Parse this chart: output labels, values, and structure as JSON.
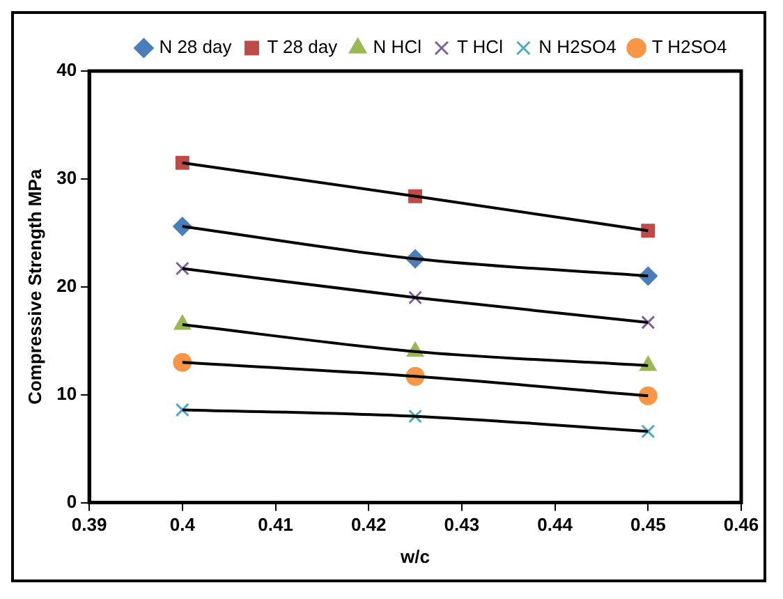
{
  "chart_data": {
    "type": "scatter",
    "xlabel": "w/c",
    "ylabel": "Compressive Strength MPa",
    "xlim": [
      0.39,
      0.46
    ],
    "xticks": [
      0.39,
      0.4,
      0.41,
      0.42,
      0.43,
      0.44,
      0.45,
      0.46
    ],
    "ylim": [
      0,
      40
    ],
    "yticks": [
      0,
      10,
      20,
      30,
      40
    ],
    "grid": false,
    "legend": "top right",
    "x": [
      0.4,
      0.425,
      0.45
    ],
    "series": [
      {
        "name": "N 28 day",
        "color": "#4a7ebb",
        "marker": "diamond",
        "values": [
          25.6,
          22.6,
          21.0
        ]
      },
      {
        "name": "T 28 day",
        "color": "#be4b48",
        "marker": "square",
        "values": [
          31.5,
          28.4,
          25.2
        ]
      },
      {
        "name": "N HCl",
        "color": "#98b954",
        "marker": "triangle",
        "values": [
          16.5,
          14.0,
          12.7
        ]
      },
      {
        "name": "T HCl",
        "color": "#7d60a0",
        "marker": "cross",
        "values": [
          21.7,
          19.0,
          16.7
        ]
      },
      {
        "name": "N H2SO4",
        "color": "#4bacc6",
        "marker": "cross",
        "values": [
          8.6,
          8.0,
          6.6
        ]
      },
      {
        "name": "T H2SO4",
        "color": "#f79646",
        "marker": "circle",
        "values": [
          13.0,
          11.7,
          9.9
        ]
      },
      {
        "type": "line",
        "color": "#000000",
        "marker": "none",
        "x": [
          0.4,
          0.425,
          0.45
        ],
        "values": [
          25.6,
          22.6,
          21.0
        ]
      },
      {
        "type": "line",
        "color": "#000000",
        "marker": "none",
        "x": [
          0.4,
          0.425,
          0.45
        ],
        "values": [
          31.5,
          28.4,
          25.2
        ]
      },
      {
        "type": "line",
        "color": "#000000",
        "marker": "none",
        "x": [
          0.4,
          0.425,
          0.45
        ],
        "values": [
          16.5,
          14.0,
          12.7
        ]
      },
      {
        "type": "line",
        "color": "#000000",
        "marker": "none",
        "x": [
          0.4,
          0.425,
          0.45
        ],
        "values": [
          21.7,
          19.0,
          16.7
        ]
      },
      {
        "type": "line",
        "color": "#000000",
        "marker": "none",
        "x": [
          0.4,
          0.425,
          0.45
        ],
        "values": [
          8.6,
          8.0,
          6.6
        ]
      },
      {
        "type": "line",
        "color": "#000000",
        "marker": "none",
        "x": [
          0.4,
          0.425,
          0.45
        ],
        "values": [
          13.0,
          11.7,
          9.9
        ]
      }
    ]
  }
}
